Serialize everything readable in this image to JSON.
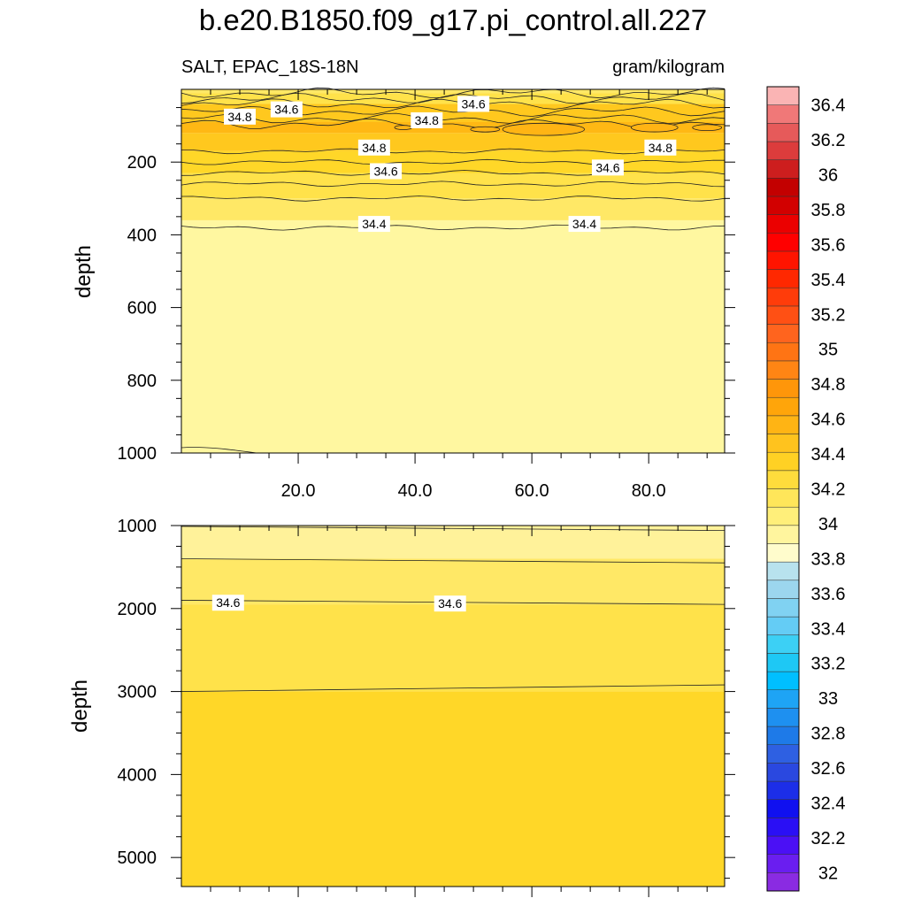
{
  "chart_data": [
    {
      "type": "heatmap",
      "title": "b.e20.B1850.f09_g17.pi_control.all.227",
      "left_subtitle": "SALT, EPAC_18S-18N",
      "right_subtitle": "gram/kilogram",
      "ylabel": "depth",
      "xlim": [
        0,
        93
      ],
      "ylim": [
        1000,
        0
      ],
      "xticks": [
        "20.0",
        "40.0",
        "60.0",
        "80.0"
      ],
      "xtick_values": [
        20,
        40,
        60,
        80
      ],
      "yticks": [
        "200",
        "400",
        "600",
        "800",
        "1000"
      ],
      "ytick_values": [
        200,
        400,
        600,
        800,
        1000
      ],
      "bands": [
        {
          "bottom": 0,
          "top": 10,
          "value": 34.5
        },
        {
          "bottom": 10,
          "top": 40,
          "value": 34.6
        },
        {
          "bottom": 40,
          "top": 90,
          "value": 34.8
        },
        {
          "bottom": 90,
          "top": 120,
          "value": 34.9
        },
        {
          "bottom": 120,
          "top": 170,
          "value": 34.8
        },
        {
          "bottom": 170,
          "top": 230,
          "value": 34.7
        },
        {
          "bottom": 230,
          "top": 300,
          "value": 34.6
        },
        {
          "bottom": 300,
          "top": 360,
          "value": 34.5
        },
        {
          "bottom": 360,
          "top": 1000,
          "value": 34.3
        }
      ],
      "contour_levels": [
        {
          "depth": 10,
          "label": ""
        },
        {
          "depth": 25,
          "label": ""
        },
        {
          "depth": 40,
          "label": "34.6"
        },
        {
          "depth": 60,
          "label": ""
        },
        {
          "depth": 80,
          "label": "34.8"
        },
        {
          "depth": 95,
          "label": ""
        },
        {
          "depth": 170,
          "label": "34.8"
        },
        {
          "depth": 200,
          "label": ""
        },
        {
          "depth": 230,
          "label": "34.6"
        },
        {
          "depth": 260,
          "label": ""
        },
        {
          "depth": 300,
          "label": ""
        },
        {
          "depth": 380,
          "label": "34.4"
        }
      ],
      "contour_labels": [
        {
          "text": "34.8",
          "x": 10,
          "y": 75
        },
        {
          "text": "34.6",
          "x": 18,
          "y": 55
        },
        {
          "text": "34.8",
          "x": 42,
          "y": 85
        },
        {
          "text": "34.6",
          "x": 50,
          "y": 40
        },
        {
          "text": "34.8",
          "x": 33,
          "y": 160
        },
        {
          "text": "34.8",
          "x": 82,
          "y": 160
        },
        {
          "text": "34.6",
          "x": 35,
          "y": 225
        },
        {
          "text": "34.6",
          "x": 73,
          "y": 215
        },
        {
          "text": "34.4",
          "x": 33,
          "y": 370
        },
        {
          "text": "34.4",
          "x": 69,
          "y": 370
        }
      ]
    },
    {
      "type": "heatmap",
      "ylabel": "depth",
      "xlim": [
        0,
        93
      ],
      "ylim": [
        5350,
        1000
      ],
      "yticks": [
        "1000",
        "2000",
        "3000",
        "4000",
        "5000"
      ],
      "ytick_values": [
        1000,
        2000,
        3000,
        4000,
        5000
      ],
      "bands": [
        {
          "top": 1000,
          "bottom": 1400,
          "value": 34.4
        },
        {
          "top": 1400,
          "bottom": 1950,
          "value": 34.5
        },
        {
          "top": 1950,
          "bottom": 3000,
          "value": 34.6
        },
        {
          "top": 3000,
          "bottom": 5350,
          "value": 34.7
        }
      ],
      "contours": [
        {
          "left": 1400,
          "right": 1450,
          "label": ""
        },
        {
          "left": 1900,
          "right": 1950,
          "label": "34.6"
        },
        {
          "left": 3000,
          "right": 2920,
          "label": ""
        }
      ],
      "contour_labels": [
        {
          "text": "34.6",
          "x": 8,
          "y": 1930
        },
        {
          "text": "34.6",
          "x": 46,
          "y": 1940
        }
      ]
    }
  ],
  "colorbar": {
    "labels": [
      "32",
      "32.2",
      "32.4",
      "32.6",
      "32.8",
      "33",
      "33.2",
      "33.4",
      "33.6",
      "33.8",
      "34",
      "34.2",
      "34.4",
      "34.6",
      "34.8",
      "35",
      "35.2",
      "35.4",
      "35.6",
      "35.8",
      "36",
      "36.2",
      "36.4"
    ],
    "colors": [
      "#8a2be2",
      "#6a1ef0",
      "#4b10f5",
      "#2a0ff5",
      "#1010f0",
      "#1c2ee8",
      "#2a48e0",
      "#2e60e2",
      "#1e7ae8",
      "#1e90f0",
      "#1ea4f5",
      "#00bfff",
      "#1ec8f5",
      "#3cd0f5",
      "#64ccf5",
      "#80d2f2",
      "#9cd6ee",
      "#b8e2ee",
      "#fffccc",
      "#fff59e",
      "#ffef7a",
      "#ffe65a",
      "#ffdc3c",
      "#ffd124",
      "#ffc31e",
      "#ffb414",
      "#ffa50a",
      "#ff960a",
      "#ff8514",
      "#ff7414",
      "#ff641e",
      "#ff5014",
      "#ff3c0a",
      "#ff2800",
      "#ff1400",
      "#ff0000",
      "#eb0000",
      "#d20000",
      "#c30000",
      "#cd1e1e",
      "#dc3c3c",
      "#e65a5a",
      "#f07878",
      "#fab4b4"
    ]
  }
}
